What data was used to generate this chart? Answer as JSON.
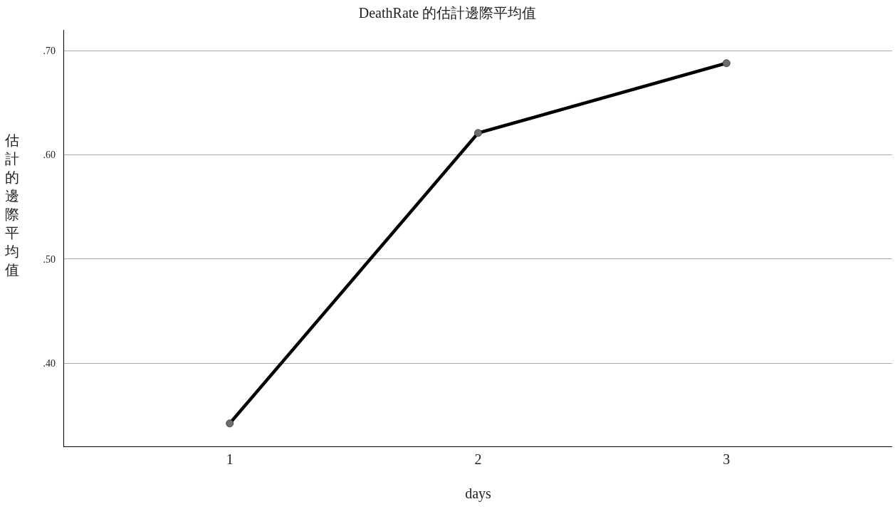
{
  "chart_data": {
    "type": "line",
    "title": "DeathRate 的估計邊際平均值",
    "xlabel": "days",
    "ylabel": "估計的邊際平均值",
    "categories": [
      "1",
      "2",
      "3"
    ],
    "series": [
      {
        "color": "#000000",
        "values": [
          0.342,
          0.621,
          0.688
        ]
      }
    ],
    "ylim": [
      0.32,
      0.72
    ],
    "yticks": [
      {
        "value": 0.4,
        "label": ".40"
      },
      {
        "value": 0.5,
        "label": ".50"
      },
      {
        "value": 0.6,
        "label": ".60"
      },
      {
        "value": 0.7,
        "label": ".70"
      }
    ],
    "grid": "y",
    "marker": "circle",
    "line_style": "solid"
  }
}
